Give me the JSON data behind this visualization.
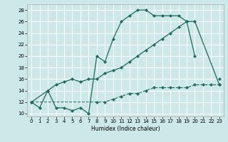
{
  "xlabel": "Humidex (Indice chaleur)",
  "bg_color": "#cce8e8",
  "grid_color": "#ffffff",
  "line_color": "#1a6b5a",
  "xlim": [
    -0.5,
    23.5
  ],
  "ylim": [
    9.5,
    29
  ],
  "xticks": [
    0,
    1,
    2,
    3,
    4,
    5,
    6,
    7,
    8,
    9,
    10,
    11,
    12,
    13,
    14,
    15,
    16,
    17,
    18,
    19,
    20,
    21,
    22,
    23
  ],
  "yticks": [
    10,
    12,
    14,
    16,
    18,
    20,
    22,
    24,
    26,
    28
  ],
  "lA_x": [
    0,
    1,
    2,
    3,
    4,
    5,
    6,
    7,
    8,
    9,
    10,
    11,
    12,
    13,
    14,
    15,
    16,
    17,
    18,
    19,
    20,
    21,
    22,
    23
  ],
  "lA_y": [
    12,
    11,
    14,
    11,
    11,
    10.5,
    11,
    10,
    20,
    19,
    23,
    26,
    27,
    28,
    28,
    27,
    27,
    27,
    27,
    26,
    20,
    null,
    null,
    16
  ],
  "lB_x": [
    0,
    2,
    3,
    4,
    5,
    6,
    7,
    8,
    9,
    10,
    11,
    12,
    13,
    14,
    15,
    16,
    17,
    18,
    19,
    20,
    23
  ],
  "lB_y": [
    12,
    14,
    15,
    15.5,
    16,
    15.5,
    16,
    16,
    17,
    17.5,
    18,
    19,
    20,
    21,
    22,
    23,
    24,
    25,
    26,
    26,
    15
  ],
  "lC_x": [
    0,
    8,
    9,
    10,
    11,
    12,
    13,
    14,
    15,
    16,
    17,
    18,
    19,
    20,
    21,
    22,
    23
  ],
  "lC_y": [
    12,
    12,
    12,
    12.5,
    13,
    13.5,
    13.5,
    14,
    14.5,
    14.5,
    14.5,
    14.5,
    14.5,
    15,
    15,
    15,
    15
  ]
}
